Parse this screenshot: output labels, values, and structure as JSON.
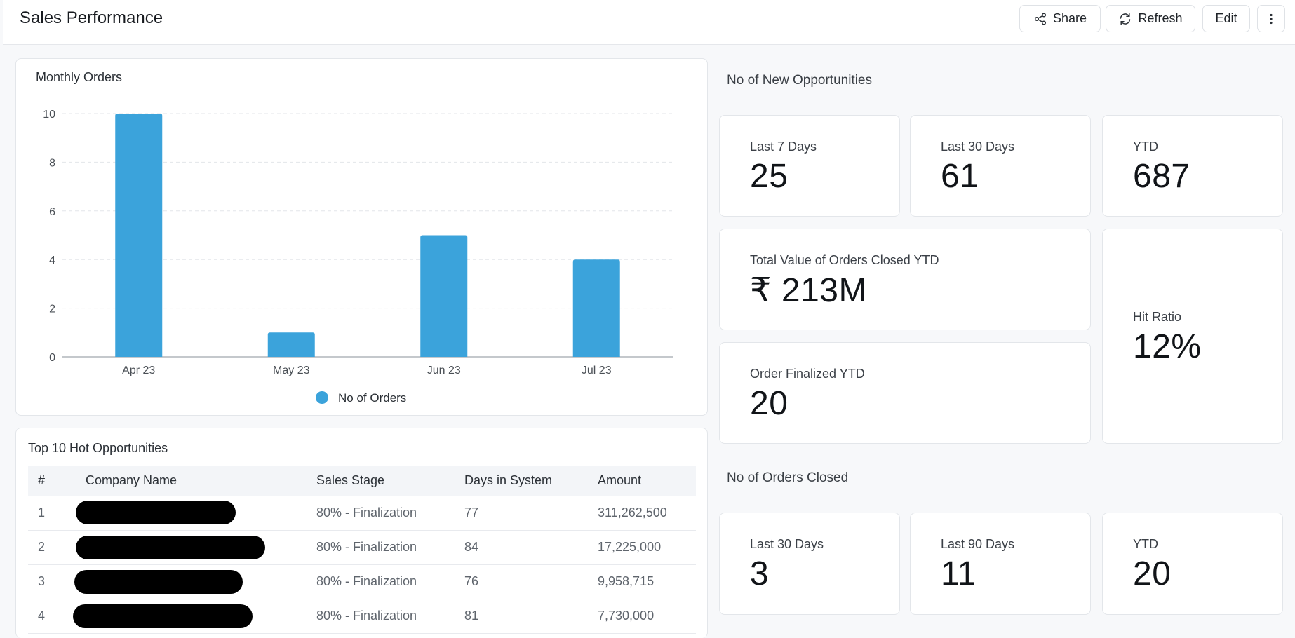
{
  "header": {
    "title": "Sales Performance",
    "share_label": "Share",
    "refresh_label": "Refresh",
    "edit_label": "Edit"
  },
  "monthly_orders": {
    "title": "Monthly Orders",
    "chart_data": {
      "type": "bar",
      "categories": [
        "Apr 23",
        "May 23",
        "Jun 23",
        "Jul 23"
      ],
      "series": [
        {
          "name": "No of Orders",
          "values": [
            10,
            1,
            5,
            4
          ],
          "color": "#3ba3db"
        }
      ],
      "yticks": [
        "0",
        "2",
        "4",
        "6",
        "8",
        "10"
      ],
      "ylim": [
        0,
        10
      ],
      "grid": true,
      "legend": "bottom-center"
    }
  },
  "new_opportunities": {
    "title": "No of New Opportunities",
    "stats": [
      {
        "label": "Last 7 Days",
        "value": "25"
      },
      {
        "label": "Last 30 Days",
        "value": "61"
      },
      {
        "label": "YTD",
        "value": "687"
      }
    ]
  },
  "total_value": {
    "label": "Total Value of Orders Closed YTD",
    "value": "₹ 213M"
  },
  "order_finalized": {
    "label": "Order Finalized YTD",
    "value": "20"
  },
  "hit_ratio": {
    "label": "Hit Ratio",
    "value": "12%"
  },
  "orders_closed": {
    "title": "No of Orders Closed",
    "stats": [
      {
        "label": "Last 30 Days",
        "value": "3"
      },
      {
        "label": "Last 90 Days",
        "value": "11"
      },
      {
        "label": "YTD",
        "value": "20"
      }
    ]
  },
  "hot_opportunities": {
    "title": "Top 10 Hot Opportunities",
    "columns": [
      "#",
      "Company Name",
      "Sales Stage",
      "Days in System",
      "Amount"
    ],
    "rows": [
      {
        "num": "1",
        "stage": "80% - Finalization",
        "days": "77",
        "amount": "311,262,500"
      },
      {
        "num": "2",
        "stage": "80% - Finalization",
        "days": "84",
        "amount": "17,225,000"
      },
      {
        "num": "3",
        "stage": "80% - Finalization",
        "days": "76",
        "amount": "9,958,715"
      },
      {
        "num": "4",
        "stage": "80% - Finalization",
        "days": "81",
        "amount": "7,730,000"
      }
    ]
  }
}
